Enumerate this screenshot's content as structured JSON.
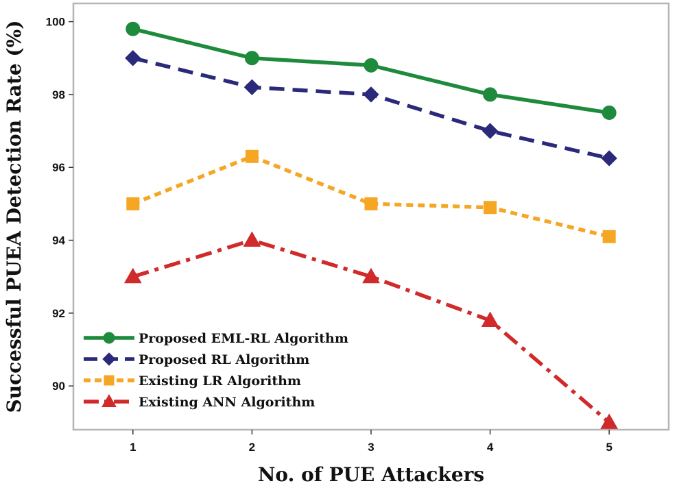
{
  "chart_data": {
    "type": "line",
    "title": "",
    "xlabel": "No. of PUE Attackers",
    "ylabel": "Successful PUEA Detection Rate (%)",
    "x": [
      1,
      2,
      3,
      4,
      5
    ],
    "xlim": [
      0.5,
      5.5
    ],
    "ylim": [
      88.8,
      100.5
    ],
    "yticks": [
      90,
      92,
      94,
      96,
      98,
      100
    ],
    "grid": false,
    "legend_position": "bottom-left",
    "series": [
      {
        "name": "Proposed EML-RL Algorithm",
        "values": [
          99.8,
          99.0,
          98.8,
          98.0,
          97.5
        ],
        "color": "#1e8a3c",
        "marker": "circle",
        "line_style": "solid"
      },
      {
        "name": "Proposed RL Algorithm",
        "values": [
          99.0,
          98.2,
          98.0,
          97.0,
          96.25
        ],
        "color": "#2b2a7a",
        "marker": "diamond",
        "line_style": "dashed"
      },
      {
        "name": "Existing LR Algorithm",
        "values": [
          95.0,
          96.3,
          95.0,
          94.9,
          94.1
        ],
        "color": "#f5a623",
        "marker": "square",
        "line_style": "dotted"
      },
      {
        "name": "Existing ANN Algorithm",
        "values": [
          93.0,
          94.0,
          93.0,
          91.8,
          89.0
        ],
        "color": "#d12a2a",
        "marker": "triangle",
        "line_style": "dashdot"
      }
    ]
  }
}
